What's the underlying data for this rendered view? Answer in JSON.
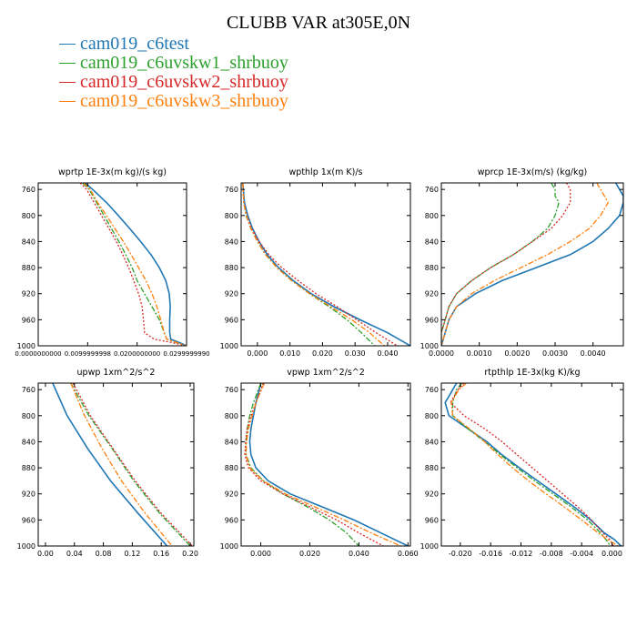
{
  "title": "CLUBB VAR at305E,0N",
  "legend": [
    {
      "label": "cam019_c6test",
      "color": "#1f77b4",
      "dash": ""
    },
    {
      "label": "cam019_c6uvskw1_shrbuoy",
      "color": "#2ca02c",
      "dash": "6,2,2,2"
    },
    {
      "label": "cam019_c6uvskw2_shrbuoy",
      "color": "#d62728",
      "dash": "2,2"
    },
    {
      "label": "cam019_c6uvskw3_shrbuoy",
      "color": "#ff7f0e",
      "dash": "6,2,2,2"
    }
  ],
  "chart_data": [
    {
      "type": "line",
      "title": "wprtp  1E-3x(m kg)/(s kg)",
      "xlim": [
        0,
        0.03
      ],
      "ylim": [
        1000,
        750
      ],
      "xticks": [
        0,
        0.01,
        0.02,
        0.03
      ],
      "xtick_labels": [
        "0.0000000000",
        "0.0099999998",
        "0.0200000000",
        "0.0299999990"
      ],
      "yticks": [
        760,
        800,
        840,
        880,
        920,
        960,
        1000
      ],
      "ytick_labels": [
        "760",
        "800",
        "840",
        "880",
        "920",
        "960",
        "1000"
      ],
      "y": [
        750,
        760,
        780,
        800,
        820,
        840,
        860,
        880,
        900,
        920,
        940,
        960,
        980,
        990,
        995,
        1000
      ],
      "series": [
        {
          "name": "cam019_c6test",
          "x": [
            0.0095,
            0.011,
            0.0138,
            0.0162,
            0.0185,
            0.0207,
            0.0228,
            0.0245,
            0.0258,
            0.0265,
            0.0267,
            0.0266,
            0.0266,
            0.0268,
            0.0285,
            0.03
          ]
        },
        {
          "name": "cam019_c6uvskw1_shrbuoy",
          "x": [
            0.009,
            0.0103,
            0.0118,
            0.0133,
            0.0148,
            0.0163,
            0.0177,
            0.019,
            0.02,
            0.0215,
            0.023,
            0.0245,
            0.0255,
            0.026,
            0.028,
            0.03
          ]
        },
        {
          "name": "cam019_c6uvskw2_shrbuoy",
          "x": [
            0.0085,
            0.0098,
            0.0113,
            0.0128,
            0.0143,
            0.0158,
            0.0171,
            0.0183,
            0.0193,
            0.0203,
            0.021,
            0.0213,
            0.0215,
            0.0235,
            0.027,
            0.03
          ]
        },
        {
          "name": "cam019_c6uvskw3_shrbuoy",
          "x": [
            0.0092,
            0.0105,
            0.012,
            0.0138,
            0.0155,
            0.0172,
            0.0188,
            0.0203,
            0.0218,
            0.023,
            0.024,
            0.0248,
            0.0255,
            0.026,
            0.028,
            0.03
          ]
        }
      ]
    },
    {
      "type": "line",
      "title": "wpthlp  1x(m K)/s",
      "xlim": [
        -0.005,
        0.047
      ],
      "ylim": [
        1000,
        750
      ],
      "xticks": [
        0,
        0.01,
        0.02,
        0.03,
        0.04
      ],
      "xtick_labels": [
        "0.000",
        "0.010",
        "0.020",
        "0.030",
        "0.040"
      ],
      "yticks": [
        760,
        800,
        840,
        880,
        920,
        960,
        1000
      ],
      "ytick_labels": [
        "760",
        "800",
        "840",
        "880",
        "920",
        "960",
        "1000"
      ],
      "y": [
        750,
        780,
        800,
        820,
        840,
        860,
        880,
        900,
        920,
        940,
        960,
        980,
        1000
      ],
      "series": [
        {
          "name": "cam019_c6test",
          "x": [
            -0.0045,
            -0.004,
            -0.003,
            -0.0015,
            0.0005,
            0.003,
            0.0065,
            0.011,
            0.0165,
            0.0235,
            0.0315,
            0.04,
            0.047
          ]
        },
        {
          "name": "cam019_c6uvskw1_shrbuoy",
          "x": [
            -0.0045,
            -0.0042,
            -0.0035,
            -0.002,
            0.0,
            0.0025,
            0.006,
            0.0105,
            0.016,
            0.022,
            0.0275,
            0.032,
            0.036
          ]
        },
        {
          "name": "cam019_c6uvskw2_shrbuoy",
          "x": [
            -0.0045,
            -0.0042,
            -0.0033,
            -0.0018,
            0.0005,
            0.0035,
            0.0075,
            0.0125,
            0.018,
            0.0245,
            0.0305,
            0.0365,
            0.043
          ]
        },
        {
          "name": "cam019_c6uvskw3_shrbuoy",
          "x": [
            -0.0045,
            -0.0042,
            -0.0034,
            -0.002,
            0.0,
            0.0025,
            0.006,
            0.0105,
            0.016,
            0.0225,
            0.029,
            0.0345,
            0.039
          ]
        }
      ]
    },
    {
      "type": "line",
      "title": "wprcp  1E-3x(m/s) (kg/kg)",
      "xlim": [
        0,
        0.0048
      ],
      "ylim": [
        1000,
        750
      ],
      "xticks": [
        0,
        0.001,
        0.002,
        0.003,
        0.004
      ],
      "xtick_labels": [
        "0.0000",
        "0.0010",
        "0.0020",
        "0.0030",
        "0.0040"
      ],
      "yticks": [
        760,
        800,
        840,
        880,
        920,
        960,
        1000
      ],
      "ytick_labels": [
        "760",
        "800",
        "840",
        "880",
        "920",
        "960",
        "1000"
      ],
      "y": [
        750,
        760,
        770,
        780,
        800,
        820,
        840,
        860,
        880,
        900,
        920,
        940,
        960,
        980,
        1000
      ],
      "series": [
        {
          "name": "cam019_c6test",
          "x": [
            0.0046,
            0.0047,
            0.0048,
            0.0048,
            0.0047,
            0.0044,
            0.004,
            0.0034,
            0.0025,
            0.0016,
            0.0009,
            0.0004,
            0.0002,
            0.0001,
            0.0
          ]
        },
        {
          "name": "cam019_c6uvskw1_shrbuoy",
          "x": [
            0.0029,
            0.003,
            0.003,
            0.0031,
            0.003,
            0.0028,
            0.0024,
            0.0019,
            0.0013,
            0.0008,
            0.0004,
            0.0002,
            0.0001,
            0.0,
            0.0
          ]
        },
        {
          "name": "cam019_c6uvskw2_shrbuoy",
          "x": [
            0.0033,
            0.0034,
            0.0034,
            0.0034,
            0.0032,
            0.0029,
            0.0024,
            0.0019,
            0.0013,
            0.0008,
            0.0004,
            0.0002,
            0.0001,
            0.0,
            0.0
          ]
        },
        {
          "name": "cam019_c6uvskw3_shrbuoy",
          "x": [
            0.0041,
            0.0042,
            0.0043,
            0.0044,
            0.0042,
            0.0039,
            0.0034,
            0.0028,
            0.0021,
            0.0014,
            0.0008,
            0.0004,
            0.0002,
            0.0001,
            0.0
          ]
        }
      ]
    },
    {
      "type": "line",
      "title": "upwp  1xm^2/s^2",
      "xlim": [
        -0.01,
        0.205
      ],
      "ylim": [
        1000,
        750
      ],
      "xticks": [
        0,
        0.04,
        0.08,
        0.12,
        0.16,
        0.2
      ],
      "xtick_labels": [
        "0.00",
        "0.04",
        "0.08",
        "0.12",
        "0.16",
        "0.20"
      ],
      "yticks": [
        760,
        800,
        840,
        880,
        920,
        960,
        1000
      ],
      "ytick_labels": [
        "760",
        "800",
        "840",
        "880",
        "920",
        "960",
        "1000"
      ],
      "y": [
        750,
        800,
        850,
        900,
        950,
        1000
      ],
      "series": [
        {
          "name": "cam019_c6test",
          "x": [
            0.01,
            0.03,
            0.058,
            0.09,
            0.128,
            0.168
          ]
        },
        {
          "name": "cam019_c6uvskw1_shrbuoy",
          "x": [
            0.035,
            0.06,
            0.092,
            0.122,
            0.158,
            0.2
          ]
        },
        {
          "name": "cam019_c6uvskw2_shrbuoy",
          "x": [
            0.038,
            0.062,
            0.093,
            0.124,
            0.16,
            0.203
          ]
        },
        {
          "name": "cam019_c6uvskw3_shrbuoy",
          "x": [
            0.035,
            0.054,
            0.078,
            0.105,
            0.138,
            0.175
          ]
        }
      ]
    },
    {
      "type": "line",
      "title": "vpwp  1xm^2/s^2",
      "xlim": [
        -0.008,
        0.061
      ],
      "ylim": [
        1000,
        750
      ],
      "xticks": [
        0,
        0.02,
        0.04,
        0.06
      ],
      "xtick_labels": [
        "0.000",
        "0.020",
        "0.040",
        "0.060"
      ],
      "yticks": [
        760,
        800,
        840,
        880,
        920,
        960,
        1000
      ],
      "ytick_labels": [
        "760",
        "800",
        "840",
        "880",
        "920",
        "960",
        "1000"
      ],
      "y": [
        750,
        780,
        800,
        820,
        840,
        860,
        880,
        900,
        920,
        940,
        960,
        980,
        1000
      ],
      "series": [
        {
          "name": "cam019_c6test",
          "x": [
            0.0,
            -0.002,
            -0.003,
            -0.004,
            -0.0045,
            -0.004,
            -0.002,
            0.003,
            0.012,
            0.025,
            0.038,
            0.049,
            0.06
          ]
        },
        {
          "name": "cam019_c6uvskw1_shrbuoy",
          "x": [
            0.0,
            -0.003,
            -0.0045,
            -0.0055,
            -0.006,
            -0.006,
            -0.004,
            0.001,
            0.009,
            0.019,
            0.028,
            0.035,
            0.04
          ]
        },
        {
          "name": "cam019_c6uvskw2_shrbuoy",
          "x": [
            0.001,
            -0.002,
            -0.004,
            -0.0055,
            -0.0062,
            -0.0065,
            -0.005,
            0.0,
            0.009,
            0.02,
            0.031,
            0.04,
            0.05
          ]
        },
        {
          "name": "cam019_c6uvskw3_shrbuoy",
          "x": [
            0.0015,
            -0.002,
            -0.0035,
            -0.005,
            -0.0058,
            -0.006,
            -0.0045,
            0.001,
            0.01,
            0.022,
            0.034,
            0.045,
            0.057
          ]
        }
      ]
    },
    {
      "type": "line",
      "title": "rtpthlp  1E-3x(kg K)/kg",
      "xlim": [
        -0.0225,
        0.0015
      ],
      "ylim": [
        1000,
        750
      ],
      "xticks": [
        -0.02,
        -0.016,
        -0.012,
        -0.008,
        -0.004,
        0.0
      ],
      "xtick_labels": [
        "-0.020",
        "-0.016",
        "-0.012",
        "-0.008",
        "-0.004",
        "0.000"
      ],
      "yticks": [
        760,
        800,
        840,
        880,
        920,
        960,
        1000
      ],
      "ytick_labels": [
        "760",
        "800",
        "840",
        "880",
        "920",
        "960",
        "1000"
      ],
      "y": [
        750,
        760,
        780,
        800,
        820,
        840,
        860,
        880,
        900,
        920,
        940,
        960,
        980,
        990,
        1000
      ],
      "series": [
        {
          "name": "cam019_c6test",
          "x": [
            -0.0205,
            -0.021,
            -0.022,
            -0.0215,
            -0.019,
            -0.0165,
            -0.0145,
            -0.0122,
            -0.0098,
            -0.0074,
            -0.005,
            -0.0028,
            -0.001,
            0.0003,
            0.0012
          ]
        },
        {
          "name": "cam019_c6uvskw1_shrbuoy",
          "x": [
            -0.0198,
            -0.0205,
            -0.021,
            -0.021,
            -0.019,
            -0.0168,
            -0.0147,
            -0.0125,
            -0.0102,
            -0.0078,
            -0.0054,
            -0.0032,
            -0.0015,
            -0.0008,
            -0.0002
          ]
        },
        {
          "name": "cam019_c6uvskw2_shrbuoy",
          "x": [
            -0.0195,
            -0.0203,
            -0.0213,
            -0.0195,
            -0.0168,
            -0.0145,
            -0.0125,
            -0.0105,
            -0.0085,
            -0.0065,
            -0.0045,
            -0.0027,
            -0.0012,
            -0.0003,
            0.0002
          ]
        },
        {
          "name": "cam019_c6uvskw3_shrbuoy",
          "x": [
            -0.0192,
            -0.0202,
            -0.0212,
            -0.021,
            -0.0188,
            -0.0168,
            -0.015,
            -0.0131,
            -0.011,
            -0.0087,
            -0.0063,
            -0.004,
            -0.0018,
            -0.0006,
            0.0008
          ]
        }
      ]
    }
  ]
}
